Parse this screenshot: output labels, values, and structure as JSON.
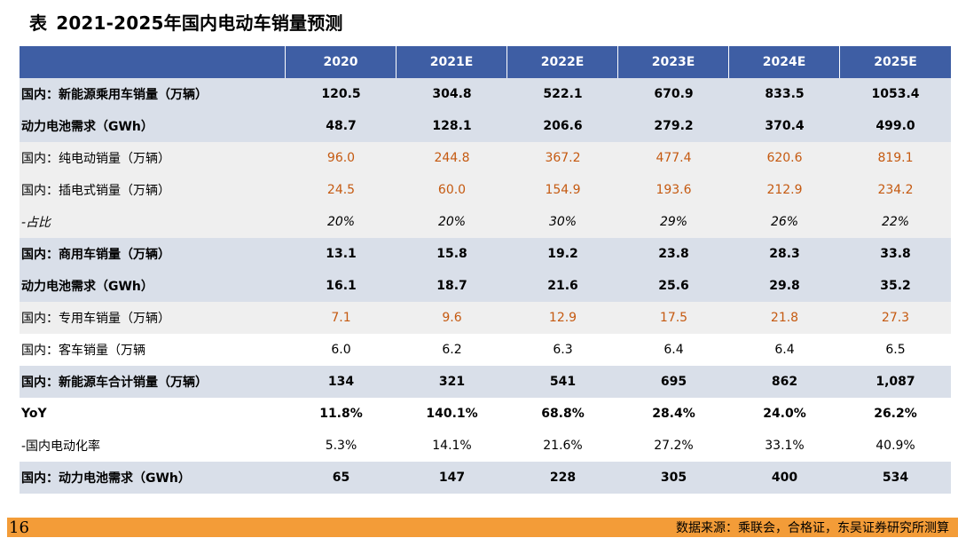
{
  "title": {
    "label": "表",
    "text": "2021-2025年国内电动车销量预测"
  },
  "table": {
    "headers": [
      "",
      "2020",
      "2021E",
      "2022E",
      "2023E",
      "2024E",
      "2025E"
    ],
    "rows": [
      {
        "label": "国内：新能源乘用车销量（万辆）",
        "values": [
          "120.5",
          "304.8",
          "522.1",
          "670.9",
          "833.5",
          "1053.4"
        ]
      },
      {
        "label": "动力电池需求（GWh）",
        "values": [
          "48.7",
          "128.1",
          "206.6",
          "279.2",
          "370.4",
          "499.0"
        ]
      },
      {
        "label": "国内：纯电动销量（万辆）",
        "values": [
          "96.0",
          "244.8",
          "367.2",
          "477.4",
          "620.6",
          "819.1"
        ]
      },
      {
        "label": "国内：插电式销量（万辆）",
        "values": [
          "24.5",
          "60.0",
          "154.9",
          "193.6",
          "212.9",
          "234.2"
        ]
      },
      {
        "label": "-占比",
        "values": [
          "20%",
          "20%",
          "30%",
          "29%",
          "26%",
          "22%"
        ]
      },
      {
        "label": "国内：商用车销量（万辆）",
        "values": [
          "13.1",
          "15.8",
          "19.2",
          "23.8",
          "28.3",
          "33.8"
        ]
      },
      {
        "label": "动力电池需求（GWh）",
        "values": [
          "16.1",
          "18.7",
          "21.6",
          "25.6",
          "29.8",
          "35.2"
        ]
      },
      {
        "label": "国内：专用车销量（万辆）",
        "values": [
          "7.1",
          "9.6",
          "12.9",
          "17.5",
          "21.8",
          "27.3"
        ]
      },
      {
        "label": "国内：客车销量（万辆",
        "values": [
          "6.0",
          "6.2",
          "6.3",
          "6.4",
          "6.4",
          "6.5"
        ]
      },
      {
        "label": "国内：新能源车合计销量（万辆）",
        "values": [
          "134",
          "321",
          "541",
          "695",
          "862",
          "1,087"
        ]
      },
      {
        "label": "YoY",
        "values": [
          "11.8%",
          "140.1%",
          "68.8%",
          "28.4%",
          "24.0%",
          "26.2%"
        ]
      },
      {
        "label": "-国内电动化率",
        "values": [
          "5.3%",
          "14.1%",
          "21.6%",
          "27.2%",
          "33.1%",
          "40.9%"
        ]
      },
      {
        "label": "国内：动力电池需求（GWh）",
        "values": [
          "65",
          "147",
          "228",
          "305",
          "400",
          "534"
        ]
      }
    ]
  },
  "footer": {
    "page_number": "16",
    "source": "数据来源：乘联会，合格证，东吴证券研究所测算"
  },
  "colors": {
    "header_bg": "#3e5ea4",
    "band_blue": "#d9dfe9",
    "band_gray": "#efefef",
    "orange_text": "#c55a11",
    "footer_bar": "#f39c38"
  }
}
